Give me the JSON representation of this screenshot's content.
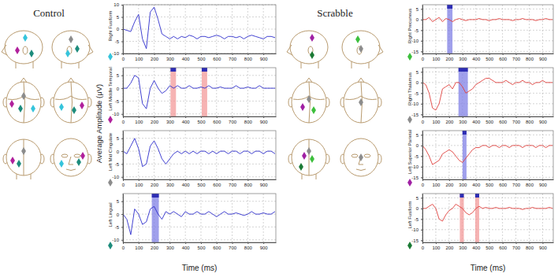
{
  "groups": [
    {
      "title": "Control",
      "ylabel": "Average Amplitude (μV)",
      "xlabel": "Time (ms)"
    },
    {
      "title": "Scrabble",
      "xlabel": "Time (ms)"
    }
  ],
  "chart_data": [
    {
      "type": "line",
      "ylabel": "Right Fusiform",
      "color": "#2d2dcc",
      "grid": true,
      "x": [
        0,
        25,
        50,
        75,
        100,
        125,
        150,
        175,
        200,
        225,
        250,
        275,
        300,
        325,
        350,
        375,
        400,
        425,
        450,
        475,
        500,
        525,
        550,
        575,
        600,
        625,
        650,
        675,
        700,
        725,
        750,
        775,
        800,
        825,
        850,
        875,
        900,
        925,
        950,
        975
      ],
      "values": [
        0,
        -0.5,
        -1,
        3,
        6,
        -4,
        -8,
        7,
        9,
        4,
        -2,
        -3,
        -4,
        -3,
        -4,
        -3,
        -3.5,
        -2.5,
        -3,
        -4,
        -3,
        -3,
        -3.5,
        -3,
        -2.5,
        -3,
        -4,
        -3,
        -3,
        -3.5,
        -3,
        -4,
        -3,
        -2.5,
        -3,
        -3.5,
        -4,
        -3,
        -3,
        -3.5
      ],
      "xlim": [
        0,
        980
      ],
      "xticks": [
        0,
        100,
        200,
        300,
        400,
        500,
        600,
        700,
        800,
        900
      ],
      "ylim": [
        -10,
        10
      ],
      "yticks": [
        -10,
        -5,
        0,
        5,
        10
      ],
      "windows": []
    },
    {
      "type": "line",
      "ylabel": "Left Middle Temporal",
      "color": "#2d2dcc",
      "grid": true,
      "x": [
        0,
        25,
        50,
        75,
        100,
        125,
        150,
        175,
        200,
        225,
        250,
        275,
        300,
        325,
        350,
        375,
        400,
        425,
        450,
        475,
        500,
        525,
        550,
        575,
        600,
        625,
        650,
        675,
        700,
        725,
        750,
        775,
        800,
        825,
        850,
        875,
        900,
        925,
        950,
        975
      ],
      "values": [
        0,
        0,
        2,
        5,
        4,
        -6,
        -8,
        0,
        3,
        0,
        -2,
        -1,
        1,
        0,
        1,
        0,
        0,
        1,
        0,
        0,
        0.5,
        0,
        1,
        0,
        0,
        0.5,
        0,
        0,
        0,
        1,
        0,
        0,
        0.5,
        0,
        0,
        1,
        0,
        0,
        0,
        0
      ],
      "xlim": [
        0,
        980
      ],
      "xticks": [
        0,
        100,
        200,
        300,
        400,
        500,
        600,
        700,
        800,
        900
      ],
      "ylim": [
        -11,
        8
      ],
      "yticks": [
        -10,
        -5,
        0,
        5
      ],
      "windows": [
        {
          "start": 305,
          "end": 340,
          "color": "#f39a9a"
        },
        {
          "start": 505,
          "end": 540,
          "color": "#f39a9a"
        }
      ]
    },
    {
      "type": "line",
      "ylabel": "Left Mid Cingulate",
      "color": "#2d2dcc",
      "grid": true,
      "x": [
        0,
        25,
        50,
        75,
        100,
        125,
        150,
        175,
        200,
        225,
        250,
        275,
        300,
        325,
        350,
        375,
        400,
        425,
        450,
        475,
        500,
        525,
        550,
        575,
        600,
        625,
        650,
        675,
        700,
        725,
        750,
        775,
        800,
        825,
        850,
        875,
        900,
        925,
        950,
        975
      ],
      "values": [
        0,
        -1,
        2,
        5,
        1,
        -6,
        -5,
        2,
        4,
        1,
        -3,
        -5,
        -3,
        -1,
        0,
        -1,
        0,
        -1,
        0,
        -1,
        0,
        0,
        -1,
        0,
        -1,
        0,
        0,
        -1,
        0,
        0,
        -1,
        0,
        0,
        -1,
        0,
        0,
        -1,
        0,
        0,
        -1
      ],
      "xlim": [
        0,
        980
      ],
      "xticks": [
        0,
        100,
        200,
        300,
        400,
        500,
        600,
        700,
        800,
        900
      ],
      "ylim": [
        -11,
        8
      ],
      "yticks": [
        -10,
        -5,
        0,
        5
      ],
      "windows": []
    },
    {
      "type": "line",
      "ylabel": "Left Lingual",
      "color": "#2d2dcc",
      "grid": true,
      "x": [
        0,
        25,
        50,
        75,
        100,
        125,
        150,
        175,
        200,
        225,
        250,
        275,
        300,
        325,
        350,
        375,
        400,
        425,
        450,
        475,
        500,
        525,
        550,
        575,
        600,
        625,
        650,
        675,
        700,
        725,
        750,
        775,
        800,
        825,
        850,
        875,
        900,
        925,
        950,
        975
      ],
      "values": [
        0,
        -2,
        -8,
        2,
        0,
        -4,
        -3,
        2,
        3,
        0,
        -2,
        1,
        0,
        1,
        0,
        -1,
        1,
        0,
        0,
        1,
        0,
        0,
        1,
        0,
        -1,
        0,
        1,
        0,
        0,
        0.5,
        0,
        -0.5,
        0,
        1,
        0,
        0,
        0.5,
        0,
        0,
        1
      ],
      "xlim": [
        0,
        980
      ],
      "xticks": [
        0,
        100,
        200,
        300,
        400,
        500,
        600,
        700,
        800,
        900
      ],
      "ylim": [
        -11,
        8
      ],
      "yticks": [
        -10,
        -5,
        0,
        5
      ],
      "windows": [
        {
          "start": 185,
          "end": 230,
          "color": "#8080e6"
        }
      ]
    },
    {
      "type": "line",
      "ylabel": "Right Precuneus",
      "color": "#e0403c",
      "grid": true,
      "x": [
        0,
        25,
        50,
        75,
        100,
        125,
        150,
        175,
        200,
        225,
        250,
        275,
        300,
        325,
        350,
        375,
        400,
        425,
        450,
        475,
        500,
        525,
        550,
        575,
        600,
        625,
        650,
        675,
        700,
        725,
        750,
        775,
        800,
        825,
        850,
        875,
        900,
        925,
        950,
        975
      ],
      "values": [
        0,
        0,
        1,
        -1,
        0,
        1,
        -1,
        0.5,
        0,
        -1,
        0,
        0.5,
        0,
        -0.5,
        0,
        0,
        0,
        0.5,
        0,
        0,
        -0.5,
        0,
        0,
        0.5,
        0,
        0,
        0,
        -0.5,
        0,
        0,
        0.5,
        0,
        0,
        0,
        -0.5,
        0,
        0,
        0.5,
        0,
        0
      ],
      "xlim": [
        0,
        980
      ],
      "xticks": [
        0,
        100,
        200,
        300,
        400,
        500,
        600,
        700,
        800,
        900
      ],
      "ylim": [
        -16,
        7
      ],
      "yticks": [
        -15,
        -10,
        -5,
        0,
        5
      ],
      "windows": [
        {
          "start": 185,
          "end": 225,
          "color": "#8080e6"
        }
      ]
    },
    {
      "type": "line",
      "ylabel": "Right Thalamus",
      "color": "#e0403c",
      "grid": true,
      "x": [
        0,
        25,
        50,
        75,
        100,
        125,
        150,
        175,
        200,
        225,
        250,
        275,
        300,
        325,
        350,
        375,
        400,
        425,
        450,
        475,
        500,
        525,
        550,
        575,
        600,
        625,
        650,
        675,
        700,
        725,
        750,
        775,
        800,
        825,
        850,
        875,
        900,
        925,
        950,
        975
      ],
      "values": [
        0,
        -1,
        -5,
        -12,
        -13,
        -10,
        -3,
        -2,
        -1,
        -3,
        0,
        0,
        -2,
        -5,
        -4,
        -3,
        -1,
        0,
        1,
        2,
        2,
        1,
        0,
        0,
        0,
        1,
        0,
        -1,
        0,
        0,
        1,
        0,
        0,
        -1,
        0,
        0,
        1,
        0,
        0,
        0
      ],
      "xlim": [
        0,
        980
      ],
      "xticks": [
        0,
        100,
        200,
        300,
        400,
        500,
        600,
        700,
        800,
        900
      ],
      "ylim": [
        -16,
        7
      ],
      "yticks": [
        -15,
        -10,
        -5,
        0,
        5
      ],
      "windows": [
        {
          "start": 270,
          "end": 340,
          "color": "#8080e6"
        }
      ]
    },
    {
      "type": "line",
      "ylabel": "Left Superior Parietal",
      "color": "#e0403c",
      "grid": true,
      "x": [
        0,
        25,
        50,
        75,
        100,
        125,
        150,
        175,
        200,
        225,
        250,
        275,
        300,
        325,
        350,
        375,
        400,
        425,
        450,
        475,
        500,
        525,
        550,
        575,
        600,
        625,
        650,
        675,
        700,
        725,
        750,
        775,
        800,
        825,
        850,
        875,
        900,
        925,
        950,
        975
      ],
      "values": [
        0,
        -2,
        -5,
        -9,
        -8,
        -7,
        -4,
        -3,
        -2,
        -3,
        -5,
        -7,
        -8,
        -6,
        -4,
        -2,
        -1,
        -1,
        0,
        0,
        -1,
        0,
        0,
        -1,
        0,
        0,
        -1,
        0,
        0,
        0,
        -1,
        0,
        0,
        0,
        -1,
        0,
        0,
        -1,
        0,
        0
      ],
      "xlim": [
        0,
        980
      ],
      "xticks": [
        0,
        100,
        200,
        300,
        400,
        500,
        600,
        700,
        800,
        900
      ],
      "ylim": [
        -16,
        7
      ],
      "yticks": [
        -15,
        -10,
        -5,
        0,
        5
      ],
      "windows": [
        {
          "start": 300,
          "end": 330,
          "color": "#8080e6"
        }
      ]
    },
    {
      "type": "line",
      "ylabel": "Left Fusiform",
      "color": "#e0403c",
      "grid": true,
      "x": [
        0,
        25,
        50,
        75,
        100,
        125,
        150,
        175,
        200,
        225,
        250,
        275,
        300,
        325,
        350,
        375,
        400,
        425,
        450,
        475,
        500,
        525,
        550,
        575,
        600,
        625,
        650,
        675,
        700,
        725,
        750,
        775,
        800,
        825,
        850,
        875,
        900,
        925,
        950,
        975
      ],
      "values": [
        0,
        0,
        1,
        2,
        0,
        -5,
        -6,
        -3,
        -1,
        0,
        2,
        1,
        0,
        -2,
        -3,
        -2,
        0,
        1,
        0,
        0.5,
        0,
        0,
        0.5,
        0,
        0,
        0,
        0.5,
        0,
        0,
        0,
        -0.5,
        0,
        0,
        0.5,
        0,
        0,
        0,
        0,
        0.5,
        0
      ],
      "xlim": [
        0,
        980
      ],
      "xticks": [
        0,
        100,
        200,
        300,
        400,
        500,
        600,
        700,
        800,
        900
      ],
      "ylim": [
        -16,
        7
      ],
      "yticks": [
        -15,
        -10,
        -5,
        0,
        5
      ],
      "windows": [
        {
          "start": 280,
          "end": 310,
          "color": "#f39a9a"
        },
        {
          "start": 395,
          "end": 425,
          "color": "#f39a9a"
        }
      ]
    }
  ]
}
